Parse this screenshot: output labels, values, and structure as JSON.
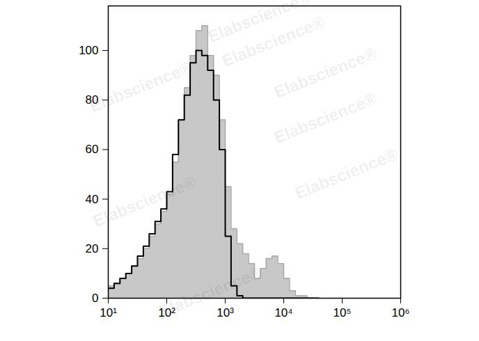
{
  "chart_data": {
    "type": "histogram",
    "annotations": [
      "Elabscience®"
    ],
    "log": "x",
    "xlim": [
      10,
      1000000
    ],
    "xticks": [
      {
        "value": 10,
        "label": "10¹"
      },
      {
        "value": 100,
        "label": "10²"
      },
      {
        "value": 1000,
        "label": "10³"
      },
      {
        "value": 10000,
        "label": "10⁴"
      },
      {
        "value": 100000,
        "label": "10⁵"
      },
      {
        "value": 1000000,
        "label": "10⁶"
      }
    ],
    "ylim": [
      0,
      118
    ],
    "yticks": [
      0,
      20,
      40,
      60,
      80,
      100
    ],
    "bins": [
      10,
      12.59,
      15.85,
      19.95,
      25.12,
      31.62,
      39.81,
      50.12,
      63.1,
      79.43,
      100,
      125.9,
      158.5,
      199.5,
      251.2,
      316.2,
      398.1,
      501.2,
      631,
      794.3,
      1000,
      1259,
      1585,
      1995,
      2512,
      3162,
      3981,
      5012,
      6310,
      7943,
      10000,
      12589,
      15849,
      19953,
      25119,
      31623,
      39811
    ],
    "series": [
      {
        "type": "area",
        "color": "#c8c8c8",
        "values": [
          5,
          6,
          8,
          10,
          13,
          16,
          20,
          25,
          30,
          35,
          42,
          55,
          72,
          85,
          98,
          108,
          110,
          98,
          90,
          72,
          45,
          28,
          22,
          18,
          14,
          8,
          12,
          16,
          17,
          14,
          8,
          3,
          1,
          1,
          0,
          0
        ]
      },
      {
        "type": "line",
        "color": "#000000",
        "values": [
          4,
          6,
          8,
          10,
          13,
          17,
          21,
          26,
          31,
          36,
          43,
          58,
          72,
          82,
          95,
          100,
          98,
          92,
          80,
          60,
          25,
          5,
          1,
          0,
          0,
          0,
          0,
          0,
          0,
          0,
          0,
          0,
          0,
          0,
          0,
          0
        ]
      }
    ]
  }
}
